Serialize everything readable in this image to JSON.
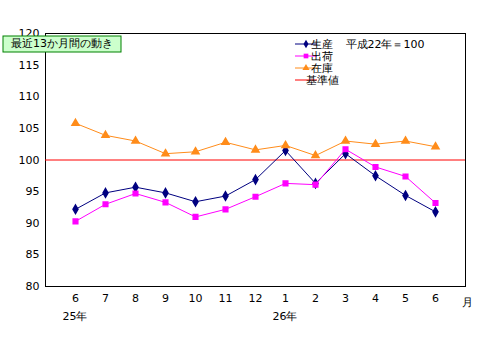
{
  "chart_data": {
    "type": "line",
    "title": "最近13か月間の動き",
    "subtitle": "平成22年＝100",
    "x_label": "月",
    "categories": [
      "6",
      "7",
      "8",
      "9",
      "10",
      "11",
      "12",
      "1",
      "2",
      "3",
      "4",
      "5",
      "6"
    ],
    "annotations": [
      {
        "text": "25年",
        "x": 0
      },
      {
        "text": "26年",
        "x": 7
      }
    ],
    "series": [
      {
        "name": "生産",
        "color": "#000080",
        "marker": "diamond",
        "values": [
          92.2,
          94.8,
          95.7,
          94.8,
          93.4,
          94.3,
          96.9,
          101.5,
          96.3,
          101.0,
          97.5,
          94.4,
          91.8
        ]
      },
      {
        "name": "出荷",
        "color": "#ff00ff",
        "marker": "square",
        "values": [
          90.3,
          93.0,
          94.7,
          93.3,
          91.0,
          92.2,
          94.2,
          96.3,
          96.1,
          101.7,
          98.9,
          97.4,
          93.2
        ]
      },
      {
        "name": "在庫",
        "color": "#ff8c1a",
        "marker": "triangle",
        "values": [
          105.8,
          103.9,
          103.0,
          101.0,
          101.3,
          102.8,
          101.6,
          102.3,
          100.7,
          103.0,
          102.5,
          103.0,
          102.1
        ]
      }
    ],
    "reference_line": {
      "name": "基準値",
      "value": 100,
      "color": "#ff0000"
    },
    "ylim": [
      80,
      120
    ],
    "yticks": [
      80,
      85,
      90,
      95,
      100,
      105,
      110,
      115,
      120
    ],
    "grid": false,
    "legend": "top-right"
  }
}
